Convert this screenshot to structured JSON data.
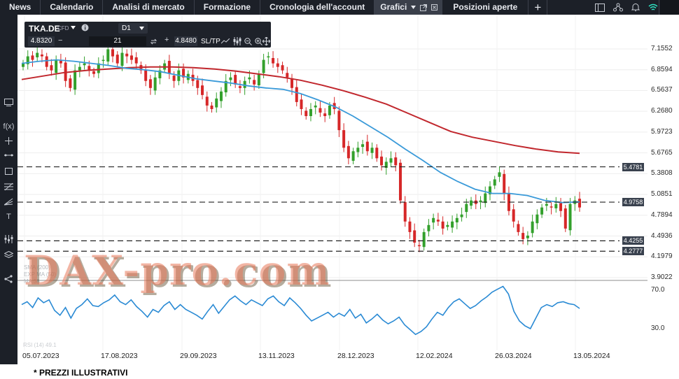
{
  "topnav": {
    "items": [
      "News",
      "Calendario",
      "Analisi di mercato",
      "Formazione",
      "Cronologia dell'account"
    ],
    "active_tab": "Grafici",
    "positions_tab": "Posizioni aperte",
    "plus": "+"
  },
  "trade": {
    "symbol": "TKA.DE",
    "instrument": "CFD",
    "timeframe": "D1",
    "bid": "4.8320",
    "quantity": "21",
    "ask": "4.8480",
    "sltp": "SL/TP",
    "minus": "−",
    "plus": "+"
  },
  "watermark": "DAX-pro.com",
  "legend": {
    "lines": [
      "SMA (200)",
      "EXP MA (50)",
      "MA 38"
    ],
    "rsi": "RSI (14) 49.1"
  },
  "footer_note": "* PREZZI ILLUSTRATIVI",
  "chart_data": {
    "type": "candlestick",
    "title": "",
    "x_ticks": [
      "05.07.2023",
      "17.08.2023",
      "29.09.2023",
      "13.11.2023",
      "28.12.2023",
      "12.02.2024",
      "26.03.2024",
      "13.05.2024"
    ],
    "y_ticks": [
      "7.1552",
      "6.8594",
      "6.5637",
      "6.2680",
      "5.9723",
      "5.6765",
      "5.3808",
      "5.0851",
      "4.7894",
      "4.4936",
      "4.1979",
      "3.9022"
    ],
    "ylim": [
      3.9022,
      7.1552
    ],
    "horizontal_levels": [
      {
        "label": "5.4781",
        "value": 5.4781
      },
      {
        "label": "4.9758",
        "value": 4.9758
      },
      {
        "label": "4.4255",
        "value": 4.4255
      },
      {
        "label": "4.2777",
        "value": 4.2777
      }
    ],
    "close_path": [
      6.95,
      7.05,
      7.0,
      7.1,
      7.05,
      6.9,
      6.85,
      7.0,
      6.95,
      6.7,
      6.6,
      6.85,
      6.9,
      6.95,
      6.85,
      6.8,
      6.95,
      7.0,
      7.15,
      7.05,
      6.95,
      7.1,
      7.05,
      7.0,
      6.95,
      6.85,
      6.7,
      6.6,
      6.75,
      6.85,
      6.95,
      6.8,
      6.7,
      6.85,
      6.75,
      6.8,
      6.7,
      6.6,
      6.5,
      6.35,
      6.3,
      6.45,
      6.55,
      6.7,
      6.75,
      6.65,
      6.6,
      6.7,
      6.75,
      6.65,
      6.8,
      7.0,
      7.05,
      6.95,
      6.9,
      6.85,
      6.75,
      6.6,
      6.4,
      6.3,
      6.2,
      6.3,
      6.35,
      6.25,
      6.2,
      6.35,
      6.3,
      6.0,
      5.75,
      5.6,
      5.7,
      5.75,
      5.8,
      5.7,
      5.75,
      5.6,
      5.5,
      5.55,
      5.6,
      5.5,
      5.0,
      4.7,
      4.55,
      4.4,
      4.35,
      4.55,
      4.65,
      4.75,
      4.7,
      4.6,
      4.65,
      4.7,
      4.75,
      4.8,
      4.95,
      5.0,
      4.95,
      5.0,
      5.1,
      5.2,
      5.3,
      5.4,
      5.1,
      4.85,
      4.7,
      4.55,
      4.45,
      4.5,
      4.7,
      4.8,
      4.9,
      4.95,
      4.9,
      4.95,
      4.85,
      4.6,
      4.95,
      5.0,
      4.9
    ],
    "sma200": [
      6.72,
      6.77,
      6.82,
      6.85,
      6.87,
      6.89,
      6.9,
      6.9,
      6.89,
      6.87,
      6.84,
      6.8,
      6.76,
      6.71,
      6.64,
      6.56,
      6.47,
      6.37,
      6.24,
      6.11,
      5.98,
      5.9,
      5.84,
      5.78,
      5.73,
      5.69,
      5.67
    ],
    "ema50": [
      6.95,
      6.98,
      7.0,
      6.98,
      6.95,
      6.92,
      6.88,
      6.86,
      6.83,
      6.78,
      6.73,
      6.7,
      6.67,
      6.63,
      6.6,
      6.58,
      6.52,
      6.43,
      6.33,
      6.2,
      6.05,
      5.9,
      5.73,
      5.57,
      5.4,
      5.27,
      5.16,
      5.1,
      5.1,
      5.07,
      5.0,
      4.97,
      4.98
    ]
  },
  "rsi": {
    "label_70": "70.0",
    "label_30": "30.0",
    "values": [
      55,
      58,
      52,
      62,
      57,
      60,
      49,
      44,
      52,
      41,
      51,
      55,
      61,
      54,
      53,
      57,
      60,
      65,
      58,
      55,
      60,
      53,
      48,
      42,
      50,
      47,
      54,
      58,
      50,
      55,
      50,
      47,
      44,
      40,
      48,
      55,
      46,
      53,
      60,
      64,
      59,
      55,
      60,
      57,
      54,
      61,
      64,
      58,
      54,
      62,
      57,
      51,
      44,
      38,
      41,
      44,
      47,
      42,
      46,
      43,
      50,
      41,
      45,
      36,
      40,
      45,
      39,
      35,
      38,
      42,
      34,
      29,
      24,
      27,
      32,
      40,
      47,
      44,
      52,
      58,
      61,
      56,
      51,
      54,
      59,
      63,
      68,
      71,
      74,
      66,
      48,
      38,
      33,
      30,
      41,
      52,
      55,
      53,
      57,
      58,
      56,
      55,
      51
    ]
  }
}
